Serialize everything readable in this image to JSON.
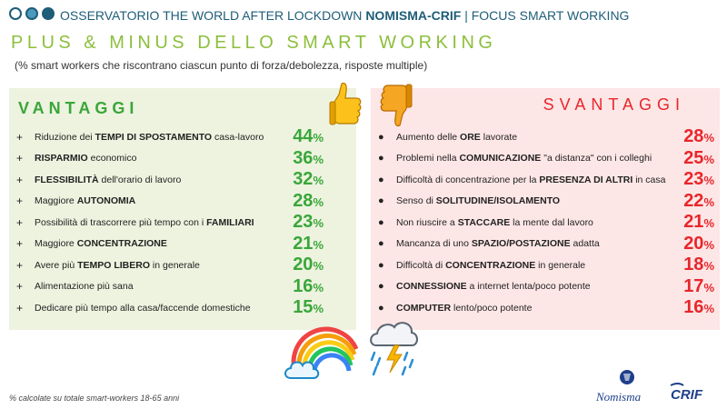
{
  "header": {
    "prefix": "OSSERVATORIO THE WORLD AFTER LOCKDOWN ",
    "brand": "NOMISMA-CRIF",
    "suffix": " | FOCUS SMART WORKING"
  },
  "title": "PLUS & MINUS DELLO SMART WORKING",
  "subtitle": "(% smart workers che riscontrano ciascun punto di forza/debolezza, risposte multiple)",
  "vantaggi": {
    "title": "VANTAGGI",
    "bullet": "+",
    "items": [
      {
        "pre": "Riduzione dei ",
        "bold": "TEMPI DI SPOSTAMENTO",
        "post": " casa-lavoro",
        "value": "44",
        "unit": "%"
      },
      {
        "pre": "",
        "bold": "RISPARMIO",
        "post": " economico",
        "value": "36",
        "unit": "%"
      },
      {
        "pre": "",
        "bold": "FLESSIBILITÀ",
        "post": " dell'orario di lavoro",
        "value": "32",
        "unit": "%"
      },
      {
        "pre": "Maggiore ",
        "bold": "AUTONOMIA",
        "post": "",
        "value": "28",
        "unit": "%"
      },
      {
        "pre": "Possibilità  di trascorrere più tempo con i ",
        "bold": "FAMILIARI",
        "post": "",
        "value": "23",
        "unit": "%"
      },
      {
        "pre": "Maggiore ",
        "bold": "CONCENTRAZIONE",
        "post": "",
        "value": "21",
        "unit": "%"
      },
      {
        "pre": "Avere più ",
        "bold": "TEMPO LIBERO",
        "post": " in generale",
        "value": "20",
        "unit": "%"
      },
      {
        "pre": "Alimentazione più sana",
        "bold": "",
        "post": "",
        "value": "16",
        "unit": "%"
      },
      {
        "pre": "Dedicare più tempo alla casa/faccende domestiche",
        "bold": "",
        "post": "",
        "value": "15",
        "unit": "%"
      }
    ]
  },
  "svantaggi": {
    "title": "SVANTAGGI",
    "bullet": "●",
    "items": [
      {
        "pre": "Aumento delle ",
        "bold": "ORE",
        "post": " lavorate",
        "value": "28",
        "unit": "%"
      },
      {
        "pre": "Problemi nella ",
        "bold": "COMUNICAZIONE",
        "post": " \"a distanza\" con i colleghi",
        "value": "25",
        "unit": "%"
      },
      {
        "pre": "Difficoltà di concentrazione per la ",
        "bold": "PRESENZA DI ALTRI",
        "post": " in casa",
        "value": "23",
        "unit": "%"
      },
      {
        "pre": "Senso di ",
        "bold": "SOLITUDINE/ISOLAMENTO",
        "post": "",
        "value": "22",
        "unit": "%"
      },
      {
        "pre": "Non riuscire a ",
        "bold": "STACCARE",
        "post": " la mente dal lavoro",
        "value": "21",
        "unit": "%"
      },
      {
        "pre": "Mancanza di uno ",
        "bold": "SPAZIO/POSTAZIONE",
        "post": " adatta",
        "value": "20",
        "unit": "%"
      },
      {
        "pre": "Difficoltà  di ",
        "bold": "CONCENTRAZIONE",
        "post": " in generale",
        "value": "18",
        "unit": "%"
      },
      {
        "pre": "",
        "bold": "CONNESSIONE",
        "post": " a internet lenta/poco potente",
        "value": "17",
        "unit": "%"
      },
      {
        "pre": "",
        "bold": "COMPUTER",
        "post": " lento/poco potente",
        "value": "16",
        "unit": "%"
      }
    ]
  },
  "footnote": "% calcolate su totale smart-workers 18-65 anni",
  "icons": {
    "thumbs_up": "thumbs-up-icon",
    "thumbs_down": "thumbs-down-icon",
    "rainbow": "rainbow-cloud-icon",
    "storm": "storm-cloud-icon"
  },
  "logos": {
    "nomisma": "Nomisma",
    "crif": "CRIF"
  },
  "colors": {
    "brand_blue": "#1e5d78",
    "title_green": "#8cbf3c",
    "positive_green": "#3aa63a",
    "negative_red": "#e8262b",
    "positive_bg": "#edf3df",
    "negative_bg": "#fde6e6"
  }
}
